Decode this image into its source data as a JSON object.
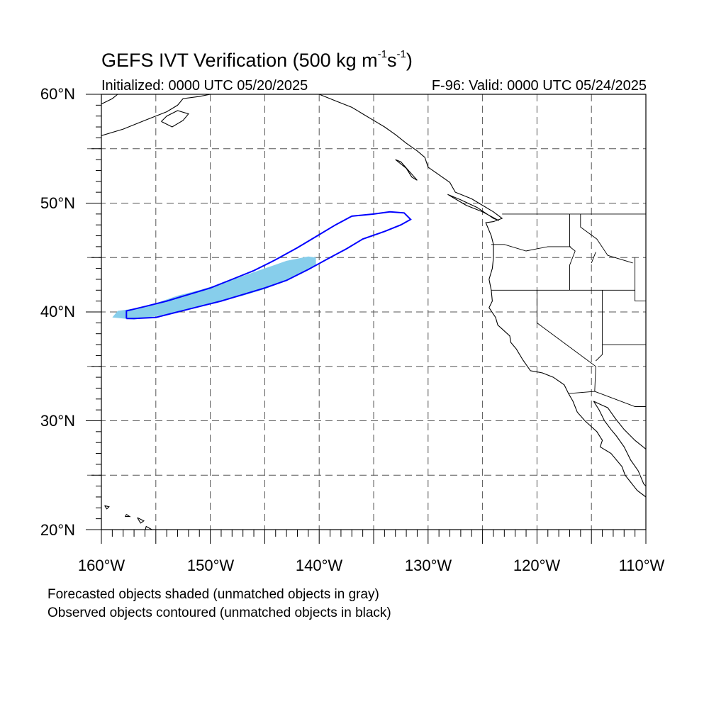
{
  "title": {
    "main": "GEFS IVT Verification (500 kg m",
    "sup1": "-1",
    "mid": "s",
    "sup2": "-1",
    "end": ")"
  },
  "init_text": "Initialized: 0000 UTC 05/20/2025",
  "valid_text": "F-96: Valid: 0000 UTC 05/24/2025",
  "lat_labels": [
    "60°N",
    "50°N",
    "40°N",
    "30°N",
    "20°N"
  ],
  "lon_labels": [
    "160°W",
    "150°W",
    "140°W",
    "130°W",
    "120°W",
    "110°W"
  ],
  "notes": [
    "Forecasted objects shaded (unmatched objects in gray)",
    "Observed objects contoured (unmatched objects in black)"
  ],
  "colors": {
    "forecast_fill": "#87ceeb",
    "observed_contour": "#0000ff",
    "coast": "#000000",
    "grid": "#555555"
  },
  "map": {
    "lon_range": [
      -160,
      -110
    ],
    "lat_range": [
      20,
      60
    ],
    "grid_lon_step": 5,
    "grid_lat_step": 5
  },
  "objects": {
    "forecast_shaded": [
      [
        -159,
        39.5
      ],
      [
        -158.5,
        40.1
      ],
      [
        -157,
        40.3
      ],
      [
        -155,
        40.8
      ],
      [
        -153,
        41.5
      ],
      [
        -151,
        42
      ],
      [
        -149,
        42.6
      ],
      [
        -147,
        43.3
      ],
      [
        -145,
        44
      ],
      [
        -143,
        44.7
      ],
      [
        -141,
        45.1
      ],
      [
        -140.3,
        45
      ],
      [
        -140.3,
        44.3
      ],
      [
        -141.5,
        43.6
      ],
      [
        -143,
        42.9
      ],
      [
        -145,
        42.1
      ],
      [
        -147,
        41.5
      ],
      [
        -149,
        41
      ],
      [
        -151,
        40.5
      ],
      [
        -153,
        40
      ],
      [
        -155,
        39.6
      ],
      [
        -157,
        39.3
      ]
    ],
    "observed_contour": [
      [
        -157.7,
        39.4
      ],
      [
        -157.7,
        40.1
      ],
      [
        -156,
        40.5
      ],
      [
        -154,
        41
      ],
      [
        -152,
        41.6
      ],
      [
        -150,
        42.2
      ],
      [
        -148,
        43
      ],
      [
        -146,
        43.8
      ],
      [
        -144,
        44.8
      ],
      [
        -142,
        45.9
      ],
      [
        -140,
        47.1
      ],
      [
        -138.5,
        48
      ],
      [
        -137,
        48.8
      ],
      [
        -135,
        49
      ],
      [
        -133.5,
        49.2
      ],
      [
        -132.2,
        49.1
      ],
      [
        -131.6,
        48.5
      ],
      [
        -132.5,
        48
      ],
      [
        -134,
        47.4
      ],
      [
        -136,
        46.7
      ],
      [
        -137.5,
        45.8
      ],
      [
        -139,
        45
      ],
      [
        -141,
        43.9
      ],
      [
        -143,
        42.9
      ],
      [
        -145,
        42.2
      ],
      [
        -147,
        41.6
      ],
      [
        -149,
        41
      ],
      [
        -151,
        40.5
      ],
      [
        -153,
        40
      ],
      [
        -155,
        39.5
      ],
      [
        -157,
        39.4
      ]
    ]
  }
}
